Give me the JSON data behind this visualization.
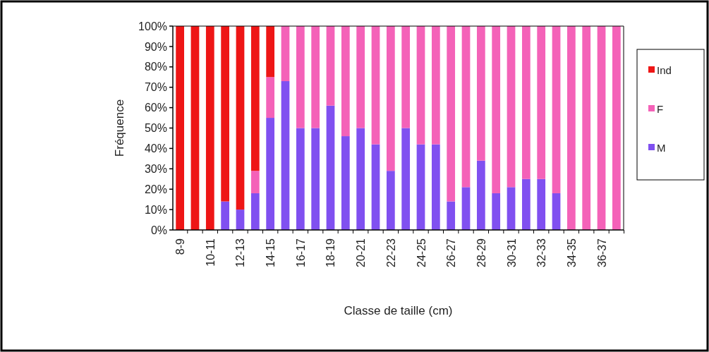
{
  "chart_data": {
    "type": "bar",
    "stacked": true,
    "xlabel": "Classe de taille (cm)",
    "ylabel": "Fréquence",
    "categories": [
      "8-9",
      null,
      "10-11",
      null,
      "12-13",
      null,
      "14-15",
      null,
      "16-17",
      null,
      "18-19",
      null,
      "20-21",
      null,
      "22-23",
      null,
      "24-25",
      null,
      "26-27",
      null,
      "28-29",
      null,
      "30-31",
      null,
      "32-33",
      null,
      "34-35",
      null,
      "36-37",
      null
    ],
    "series": [
      {
        "name": "M",
        "color": "#8050f0",
        "values": [
          0,
          0,
          0,
          14,
          10,
          18,
          55,
          73,
          50,
          50,
          61,
          46,
          50,
          42,
          29,
          50,
          42,
          42,
          14,
          21,
          34,
          18,
          21,
          25,
          25,
          18,
          0,
          0,
          0,
          0
        ]
      },
      {
        "name": "F",
        "color": "#f462b8",
        "values": [
          0,
          0,
          0,
          0,
          0,
          11,
          20,
          27,
          50,
          50,
          39,
          54,
          50,
          58,
          71,
          50,
          58,
          58,
          86,
          79,
          66,
          82,
          79,
          75,
          75,
          82,
          100,
          100,
          100,
          100
        ]
      },
      {
        "name": "Ind",
        "color": "#ee1616",
        "values": [
          100,
          100,
          100,
          86,
          90,
          71,
          25,
          0,
          0,
          0,
          0,
          0,
          0,
          0,
          0,
          0,
          0,
          0,
          0,
          0,
          0,
          0,
          0,
          0,
          0,
          0,
          0,
          0,
          0,
          0
        ]
      }
    ],
    "ylim": [
      0,
      100
    ],
    "yticks": [
      {
        "value": 0,
        "label": "0%"
      },
      {
        "value": 10,
        "label": "10%"
      },
      {
        "value": 20,
        "label": "20%"
      },
      {
        "value": 30,
        "label": "30%"
      },
      {
        "value": 40,
        "label": "40%"
      },
      {
        "value": 50,
        "label": "50%"
      },
      {
        "value": 60,
        "label": "60%"
      },
      {
        "value": 70,
        "label": "70%"
      },
      {
        "value": 80,
        "label": "80%"
      },
      {
        "value": 90,
        "label": "90%"
      },
      {
        "value": 100,
        "label": "100%"
      }
    ],
    "legend": "right"
  }
}
